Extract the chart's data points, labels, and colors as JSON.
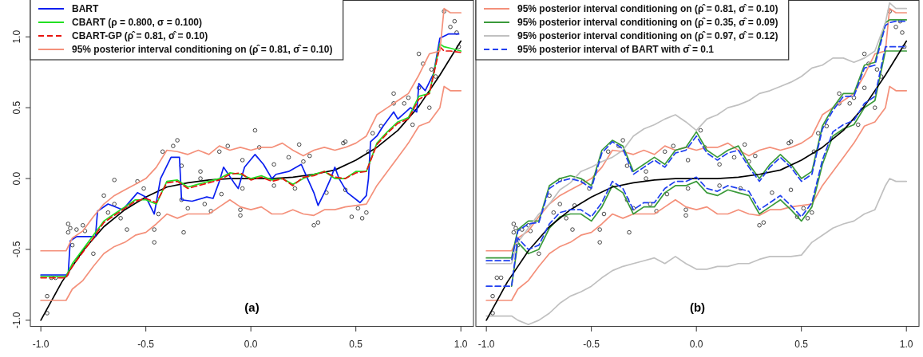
{
  "chart_data": [
    {
      "type": "line",
      "xlim": [
        -1.05,
        1.06
      ],
      "ylim": [
        -1.04,
        1.26
      ],
      "xticks": [
        {
          "value": -1,
          "label": "-1.0"
        },
        {
          "value": -0.5,
          "label": "-0.5"
        },
        {
          "value": 0,
          "label": "0.0"
        },
        {
          "value": 0.5,
          "label": "0.5"
        },
        {
          "value": 1,
          "label": "1.0"
        }
      ],
      "yticks": [
        {
          "value": -1,
          "label": "-1.0"
        },
        {
          "value": -0.5,
          "label": "-0.5"
        },
        {
          "value": 0,
          "label": "0.0"
        },
        {
          "value": 0.5,
          "label": "0.5"
        },
        {
          "value": 1,
          "label": "1.0"
        }
      ],
      "legend": "top left",
      "annotations": [
        "(a)"
      ],
      "x": [
        -1,
        -0.88,
        -0.85,
        -0.8,
        -0.75,
        -0.7,
        -0.65,
        -0.6,
        -0.55,
        -0.5,
        -0.45,
        -0.4,
        -0.35,
        -0.3,
        -0.25,
        -0.2,
        -0.15,
        -0.1,
        -0.05,
        0,
        0.05,
        0.1,
        0.15,
        0.2,
        0.25,
        0.3,
        0.35,
        0.4,
        0.45,
        0.5,
        0.55,
        0.6,
        0.65,
        0.7,
        0.75,
        0.8,
        0.85,
        0.9,
        0.92,
        0.95,
        1
      ],
      "series": [
        {
          "type": "scatter",
          "marker": "circle",
          "color": "#333333",
          "x": [
            -0.97,
            -0.97,
            -0.95,
            -0.93,
            -0.87,
            -0.87,
            -0.86,
            -0.85,
            -0.83,
            -0.8,
            -0.79,
            -0.75,
            -0.7,
            -0.68,
            -0.65,
            -0.62,
            -0.59,
            -0.58,
            -0.54,
            -0.51,
            -0.46,
            -0.46,
            -0.44,
            -0.32,
            -0.33,
            -0.3,
            -0.24,
            -0.22,
            -0.19,
            -0.14,
            -0.05,
            -0.05,
            -0.04,
            0.11,
            0.21,
            0.3,
            0.32,
            0.36,
            0.45,
            0.48,
            0.51,
            0.53,
            0.55,
            -0.65,
            -0.42,
            -0.37,
            -0.35,
            -0.33,
            -0.24,
            -0.15,
            -0.11,
            -0.04,
            0.02,
            0.04,
            0.11,
            0.18,
            0.23,
            0.25,
            0.28,
            0.44,
            0.45,
            0.56,
            0.58,
            0.62,
            0.68,
            0.68,
            0.73,
            0.75,
            0.77,
            0.8,
            0.8,
            0.82,
            0.85,
            0.86,
            0.88,
            0.92,
            0.95,
            0.97,
            0.98,
            0.99
          ],
          "values": [
            -0.83,
            -0.95,
            -0.7,
            -0.7,
            -0.32,
            -0.38,
            -0.35,
            -0.47,
            -0.36,
            -0.33,
            -0.37,
            -0.53,
            -0.12,
            -0.24,
            -0.18,
            -0.28,
            -0.36,
            -0.19,
            -0.02,
            -0.07,
            -0.36,
            -0.45,
            -0.25,
            -0.38,
            -0.15,
            -0.21,
            0,
            -0.18,
            -0.23,
            -0.11,
            -0.22,
            -0.26,
            -0.07,
            -0.05,
            -0.07,
            -0.33,
            -0.31,
            -0.1,
            -0.08,
            -0.27,
            -0.21,
            -0.28,
            -0.24,
            -0.01,
            0.19,
            0.23,
            0.27,
            0.09,
            0.05,
            0.19,
            0.23,
            0.13,
            0.34,
            0.22,
            0.1,
            0.15,
            0.24,
            0.12,
            0.16,
            0.25,
            0.26,
            0.19,
            0.32,
            0.37,
            0.6,
            0.53,
            0.53,
            0.57,
            0.38,
            0.64,
            0.88,
            0.81,
            0.5,
            0.77,
            0.72,
            1.18,
            1.07,
            1.11,
            1.03,
            0.93
          ]
        },
        {
          "color": "#000000",
          "x": [
            -1,
            -0.9,
            -0.8,
            -0.7,
            -0.6,
            -0.5,
            -0.4,
            -0.3,
            -0.2,
            -0.1,
            0,
            0.1,
            0.2,
            0.3,
            0.4,
            0.5,
            0.6,
            0.7,
            0.8,
            0.9,
            1
          ],
          "values": [
            -1,
            -0.73,
            -0.51,
            -0.34,
            -0.22,
            -0.13,
            -0.06,
            -0.03,
            -0.01,
            0,
            0,
            0,
            0.01,
            0.03,
            0.06,
            0.13,
            0.22,
            0.34,
            0.51,
            0.73,
            0.97
          ]
        },
        {
          "name": "BART",
          "color": "#0a1ff0",
          "x": [
            -1,
            -0.87,
            -0.86,
            -0.83,
            -0.77,
            -0.74,
            -0.73,
            -0.68,
            -0.61,
            -0.54,
            -0.5,
            -0.46,
            -0.43,
            -0.38,
            -0.34,
            -0.33,
            -0.28,
            -0.21,
            -0.18,
            -0.15,
            -0.13,
            -0.08,
            -0.06,
            -0.03,
            0.02,
            0.06,
            0.1,
            0.12,
            0.18,
            0.24,
            0.27,
            0.3,
            0.32,
            0.35,
            0.38,
            0.4,
            0.42,
            0.46,
            0.52,
            0.55,
            0.56,
            0.57,
            0.6,
            0.63,
            0.68,
            0.7,
            0.76,
            0.79,
            0.8,
            0.83,
            0.87,
            0.9,
            0.94,
            0.99
          ],
          "values": [
            -0.68,
            -0.68,
            -0.44,
            -0.41,
            -0.41,
            -0.41,
            -0.23,
            -0.18,
            -0.22,
            -0.1,
            -0.13,
            -0.25,
            0.0,
            0.15,
            0.15,
            -0.15,
            -0.16,
            -0.13,
            -0.14,
            -0.02,
            0.08,
            -0.03,
            -0.07,
            0.08,
            0.17,
            0.1,
            0.0,
            0.03,
            0.05,
            0.1,
            0.0,
            -0.1,
            -0.19,
            -0.1,
            0.0,
            0.08,
            0.0,
            -0.1,
            -0.17,
            -0.12,
            0.0,
            0.26,
            0.3,
            0.37,
            0.47,
            0.42,
            0.5,
            0.47,
            0.67,
            0.62,
            0.74,
            0.99,
            1.02,
            1.02
          ]
        },
        {
          "name": "CBART (ρ = 0.800, σ = 0.100)",
          "color": "#22e022",
          "values": [
            -0.69,
            -0.69,
            -0.6,
            -0.5,
            -0.4,
            -0.3,
            -0.25,
            -0.2,
            -0.15,
            -0.15,
            -0.18,
            -0.02,
            -0.01,
            -0.06,
            -0.04,
            -0.02,
            0.0,
            0.04,
            0.03,
            0.0,
            0.02,
            -0.01,
            0.0,
            -0.04,
            0.0,
            0.03,
            0.05,
            0.0,
            0.0,
            0.05,
            0.05,
            0.25,
            0.33,
            0.4,
            0.43,
            0.58,
            0.6,
            0.95,
            0.93,
            0.92,
            0.9
          ]
        },
        {
          "name": "CBART-GP (ρ̂ = 0.81,  σ̂ = 0.10)",
          "color": "#e8140f",
          "line_style": "dashed",
          "values": [
            -0.7,
            -0.7,
            -0.62,
            -0.52,
            -0.42,
            -0.31,
            -0.26,
            -0.21,
            -0.16,
            -0.14,
            -0.17,
            -0.03,
            -0.02,
            -0.07,
            -0.05,
            -0.03,
            -0.01,
            0.03,
            0.04,
            -0.01,
            0.01,
            -0.02,
            0.0,
            -0.05,
            0.01,
            0.02,
            0.05,
            0.01,
            0.0,
            0.04,
            0.05,
            0.24,
            0.32,
            0.39,
            0.42,
            0.56,
            0.6,
            0.93,
            0.9,
            0.9,
            0.89
          ]
        },
        {
          "name": "95% posterior interval conditioning on (ρ̂ = 0.81,  σ̂ = 0.10)",
          "color": "#f4907a",
          "values": [
            -0.51,
            -0.51,
            -0.42,
            -0.37,
            -0.27,
            -0.18,
            -0.12,
            -0.08,
            -0.04,
            0.0,
            0.08,
            0.2,
            0.19,
            0.17,
            0.2,
            0.17,
            0.23,
            0.2,
            0.22,
            0.2,
            0.22,
            0.22,
            0.25,
            0.2,
            0.16,
            0.2,
            0.22,
            0.2,
            0.22,
            0.25,
            0.3,
            0.45,
            0.5,
            0.55,
            0.6,
            0.73,
            0.88,
            0.9,
            1.2,
            1.17,
            1.17
          ]
        },
        {
          "color": "#f4907a",
          "values": [
            -0.86,
            -0.86,
            -0.78,
            -0.72,
            -0.62,
            -0.53,
            -0.48,
            -0.45,
            -0.4,
            -0.38,
            -0.32,
            -0.25,
            -0.28,
            -0.25,
            -0.25,
            -0.25,
            -0.2,
            -0.15,
            -0.2,
            -0.22,
            -0.2,
            -0.25,
            -0.25,
            -0.22,
            -0.25,
            -0.26,
            -0.22,
            -0.22,
            -0.2,
            -0.19,
            -0.18,
            -0.05,
            0.05,
            0.15,
            0.25,
            0.37,
            0.4,
            0.5,
            0.65,
            0.62,
            0.62
          ]
        }
      ]
    },
    {
      "type": "line",
      "xlim": [
        -1.05,
        1.06
      ],
      "ylim": [
        -1.04,
        1.26
      ],
      "xticks": [
        {
          "value": -1,
          "label": "-1.0"
        },
        {
          "value": -0.5,
          "label": "-0.5"
        },
        {
          "value": 0,
          "label": "0.0"
        },
        {
          "value": 0.5,
          "label": "0.5"
        },
        {
          "value": 1,
          "label": "1.0"
        }
      ],
      "tick_labels": "x",
      "legend": "top left",
      "annotations": [
        "(b)"
      ],
      "x": [
        -1,
        -0.88,
        -0.85,
        -0.8,
        -0.75,
        -0.7,
        -0.65,
        -0.6,
        -0.55,
        -0.5,
        -0.45,
        -0.4,
        -0.35,
        -0.3,
        -0.25,
        -0.2,
        -0.15,
        -0.1,
        -0.05,
        0,
        0.05,
        0.1,
        0.15,
        0.2,
        0.25,
        0.3,
        0.35,
        0.4,
        0.45,
        0.5,
        0.55,
        0.6,
        0.65,
        0.7,
        0.75,
        0.8,
        0.85,
        0.9,
        0.92,
        0.95,
        1
      ],
      "series": [
        {
          "type": "scatter",
          "marker": "circle",
          "color": "#333333",
          "x": [
            -0.97,
            -0.97,
            -0.95,
            -0.93,
            -0.87,
            -0.87,
            -0.86,
            -0.85,
            -0.83,
            -0.8,
            -0.79,
            -0.75,
            -0.7,
            -0.68,
            -0.65,
            -0.62,
            -0.59,
            -0.58,
            -0.54,
            -0.51,
            -0.46,
            -0.46,
            -0.44,
            -0.32,
            -0.33,
            -0.3,
            -0.24,
            -0.22,
            -0.19,
            -0.14,
            -0.05,
            -0.05,
            -0.04,
            0.11,
            0.21,
            0.3,
            0.32,
            0.36,
            0.45,
            0.48,
            0.51,
            0.53,
            0.55,
            -0.65,
            -0.42,
            -0.37,
            -0.35,
            -0.33,
            -0.24,
            -0.15,
            -0.11,
            -0.04,
            0.02,
            0.04,
            0.11,
            0.18,
            0.23,
            0.25,
            0.28,
            0.44,
            0.45,
            0.56,
            0.58,
            0.62,
            0.68,
            0.68,
            0.73,
            0.75,
            0.77,
            0.8,
            0.8,
            0.82,
            0.85,
            0.86,
            0.88,
            0.92,
            0.95,
            0.97,
            0.98,
            0.99
          ],
          "values": [
            -0.83,
            -0.95,
            -0.7,
            -0.7,
            -0.32,
            -0.38,
            -0.35,
            -0.47,
            -0.36,
            -0.33,
            -0.37,
            -0.53,
            -0.12,
            -0.24,
            -0.18,
            -0.28,
            -0.36,
            -0.19,
            -0.02,
            -0.07,
            -0.36,
            -0.45,
            -0.25,
            -0.38,
            -0.15,
            -0.21,
            0,
            -0.18,
            -0.23,
            -0.11,
            -0.22,
            -0.26,
            -0.07,
            -0.05,
            -0.07,
            -0.33,
            -0.31,
            -0.1,
            -0.08,
            -0.27,
            -0.21,
            -0.28,
            -0.24,
            -0.01,
            0.19,
            0.23,
            0.27,
            0.09,
            0.05,
            0.19,
            0.23,
            0.13,
            0.34,
            0.22,
            0.1,
            0.15,
            0.24,
            0.12,
            0.16,
            0.25,
            0.26,
            0.19,
            0.32,
            0.37,
            0.6,
            0.53,
            0.53,
            0.57,
            0.38,
            0.64,
            0.88,
            0.81,
            0.5,
            0.77,
            0.72,
            1.18,
            1.07,
            1.11,
            1.03,
            0.93
          ]
        },
        {
          "name": "95% posterior interval conditioning on (ρ̂ = 0.81,  σ̂ = 0.10)",
          "color": "#f4907a",
          "values": [
            -0.51,
            -0.51,
            -0.42,
            -0.37,
            -0.27,
            -0.18,
            -0.12,
            -0.08,
            -0.04,
            0.0,
            0.08,
            0.2,
            0.19,
            0.17,
            0.2,
            0.17,
            0.23,
            0.2,
            0.22,
            0.2,
            0.22,
            0.22,
            0.25,
            0.2,
            0.16,
            0.2,
            0.22,
            0.2,
            0.22,
            0.25,
            0.3,
            0.45,
            0.5,
            0.55,
            0.6,
            0.73,
            0.88,
            0.9,
            1.2,
            1.17,
            1.17
          ]
        },
        {
          "color": "#f4907a",
          "values": [
            -0.86,
            -0.86,
            -0.78,
            -0.72,
            -0.62,
            -0.53,
            -0.48,
            -0.45,
            -0.4,
            -0.38,
            -0.32,
            -0.25,
            -0.28,
            -0.25,
            -0.25,
            -0.25,
            -0.2,
            -0.15,
            -0.2,
            -0.22,
            -0.2,
            -0.25,
            -0.25,
            -0.22,
            -0.25,
            -0.26,
            -0.22,
            -0.22,
            -0.2,
            -0.19,
            -0.18,
            -0.05,
            0.05,
            0.15,
            0.25,
            0.37,
            0.4,
            0.5,
            0.65,
            0.62,
            0.62
          ]
        },
        {
          "name": "95% posterior interval conditioning on (ρ̂ = 0.35,  σ̂ = 0.09)",
          "color": "#3a9a3a",
          "values": [
            -0.56,
            -0.56,
            -0.36,
            -0.3,
            -0.3,
            -0.05,
            0.0,
            0.02,
            0.0,
            -0.05,
            0.2,
            0.27,
            0.23,
            0.05,
            0.1,
            0.15,
            0.1,
            0.2,
            0.22,
            0.33,
            0.2,
            0.15,
            0.2,
            0.23,
            0.1,
            0.0,
            0.1,
            0.17,
            0.1,
            0.0,
            0.05,
            0.37,
            0.5,
            0.6,
            0.6,
            0.8,
            0.82,
            1.1,
            1.12,
            1.12,
            1.12
          ]
        },
        {
          "color": "#3a9a3a",
          "values": [
            null,
            -0.76,
            -0.45,
            -0.53,
            -0.5,
            -0.35,
            -0.27,
            -0.25,
            -0.25,
            -0.3,
            -0.2,
            -0.05,
            -0.1,
            -0.25,
            -0.2,
            -0.2,
            -0.1,
            -0.05,
            -0.05,
            -0.02,
            -0.1,
            -0.12,
            -0.08,
            -0.1,
            -0.12,
            -0.25,
            -0.2,
            -0.15,
            -0.22,
            -0.3,
            -0.2,
            0.1,
            0.3,
            0.35,
            0.38,
            0.5,
            0.55,
            0.9,
            0.9,
            0.9,
            0.9
          ]
        },
        {
          "name": "95% posterior interval conditioning on (ρ̂ = 0.97,  σ̂ = 0.12)",
          "color": "#c0c0c0",
          "values": [
            -0.6,
            -0.6,
            -0.45,
            -0.35,
            -0.25,
            -0.18,
            -0.08,
            -0.03,
            0.05,
            0.08,
            0.12,
            0.15,
            0.2,
            0.3,
            0.35,
            0.38,
            0.42,
            0.45,
            0.4,
            0.34,
            0.42,
            0.45,
            0.5,
            0.52,
            0.55,
            0.6,
            0.62,
            0.65,
            0.68,
            0.72,
            0.78,
            0.8,
            0.85,
            0.85,
            0.82,
            0.85,
            0.9,
            1.1,
            1.24,
            1.2,
            1.2
          ]
        },
        {
          "color": "#c0c0c0",
          "values": [
            -0.97,
            -0.97,
            -1.0,
            -1.03,
            -1.0,
            -0.95,
            -0.88,
            -0.83,
            -0.8,
            -0.76,
            -0.7,
            -0.65,
            -0.62,
            -0.6,
            -0.58,
            -0.56,
            -0.6,
            -0.55,
            -0.6,
            -0.64,
            -0.64,
            -0.62,
            -0.62,
            -0.6,
            -0.6,
            -0.57,
            -0.55,
            -0.55,
            -0.55,
            -0.54,
            -0.45,
            -0.4,
            -0.35,
            -0.32,
            -0.3,
            -0.25,
            -0.22,
            -0.05,
            0.0,
            -0.02,
            -0.02
          ]
        },
        {
          "color": "#000000",
          "x": [
            -1,
            -0.9,
            -0.8,
            -0.7,
            -0.6,
            -0.5,
            -0.4,
            -0.3,
            -0.2,
            -0.1,
            0,
            0.1,
            0.2,
            0.3,
            0.4,
            0.5,
            0.6,
            0.7,
            0.8,
            0.9,
            1
          ],
          "values": [
            -1,
            -0.73,
            -0.51,
            -0.34,
            -0.22,
            -0.13,
            -0.06,
            -0.03,
            -0.01,
            0,
            0,
            0,
            0.01,
            0.03,
            0.06,
            0.13,
            0.22,
            0.34,
            0.51,
            0.73,
            0.97
          ]
        },
        {
          "name": "95% posterior interval of BART with σ̂ = 0.1",
          "color": "#1f3ff0",
          "line_style": "dashed",
          "values": [
            -0.58,
            -0.58,
            -0.37,
            -0.32,
            -0.31,
            -0.07,
            -0.02,
            0.0,
            -0.02,
            -0.07,
            0.18,
            0.26,
            0.21,
            0.03,
            0.08,
            0.13,
            0.08,
            0.18,
            0.2,
            0.3,
            0.18,
            0.13,
            0.18,
            0.2,
            0.08,
            -0.02,
            0.08,
            0.15,
            0.08,
            -0.02,
            0.03,
            0.35,
            0.48,
            0.58,
            0.58,
            0.78,
            0.8,
            1.08,
            1.1,
            1.11,
            1.11
          ]
        },
        {
          "color": "#1f3ff0",
          "line_style": "dashed",
          "values": [
            -0.76,
            -0.76,
            -0.42,
            -0.5,
            -0.47,
            -0.32,
            -0.24,
            -0.22,
            -0.22,
            -0.27,
            -0.17,
            -0.02,
            -0.07,
            -0.22,
            -0.17,
            -0.17,
            -0.07,
            -0.02,
            -0.02,
            0.01,
            -0.07,
            -0.09,
            -0.05,
            -0.07,
            -0.09,
            -0.22,
            -0.17,
            -0.12,
            -0.19,
            -0.27,
            -0.17,
            0.13,
            0.33,
            0.38,
            0.41,
            0.53,
            0.58,
            0.93,
            0.93,
            0.93,
            0.93
          ]
        }
      ]
    }
  ]
}
